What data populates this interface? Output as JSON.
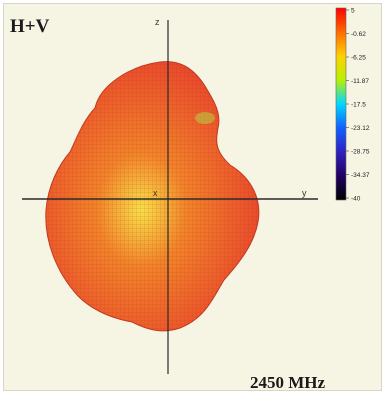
{
  "chart_data": {
    "type": "heatmap",
    "title": "H+V",
    "frequency_label": "2450 MHz",
    "axes": {
      "vertical": "z",
      "horizontal": "y",
      "origin": "x"
    },
    "colorbar": {
      "ticks": [
        "5",
        "-0.62",
        "-6.25",
        "-11.87",
        "-17.5",
        "-23.12",
        "-28.75",
        "-34.37",
        "-40"
      ],
      "values": [
        5,
        -0.62,
        -6.25,
        -11.87,
        -17.5,
        -23.12,
        -28.75,
        -34.37,
        -40
      ],
      "colors": [
        "#ff0000",
        "#ff6a00",
        "#ffd000",
        "#b8f000",
        "#00d8ff",
        "#1060ff",
        "#3020c0",
        "#200060",
        "#000000"
      ]
    },
    "pattern_colors": {
      "outer": "#e8442c",
      "mid": "#f2842a",
      "core": "#f7e14a",
      "grid": "#b02a1a"
    }
  }
}
